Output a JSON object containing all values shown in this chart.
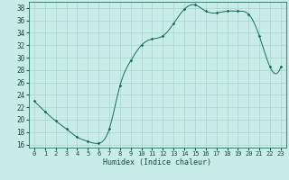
{
  "xlabel": "Humidex (Indice chaleur)",
  "xlim": [
    -0.5,
    23.5
  ],
  "ylim": [
    15.5,
    39
  ],
  "yticks": [
    16,
    18,
    20,
    22,
    24,
    26,
    28,
    30,
    32,
    34,
    36,
    38
  ],
  "xticks": [
    0,
    1,
    2,
    3,
    4,
    5,
    6,
    7,
    8,
    9,
    10,
    11,
    12,
    13,
    14,
    15,
    16,
    17,
    18,
    19,
    20,
    21,
    22,
    23
  ],
  "bg_color": "#c8ece9",
  "grid_color": "#a8d4cc",
  "line_color": "#1a6b5a",
  "marker_color": "#1a6b5a",
  "y_values": [
    23.0,
    21.3,
    19.8,
    18.5,
    17.2,
    16.5,
    16.2,
    18.5,
    25.5,
    29.5,
    32.0,
    33.0,
    33.5,
    35.5,
    37.8,
    38.5,
    37.5,
    37.2,
    37.5,
    37.5,
    37.0,
    33.5,
    28.5,
    28.5
  ]
}
